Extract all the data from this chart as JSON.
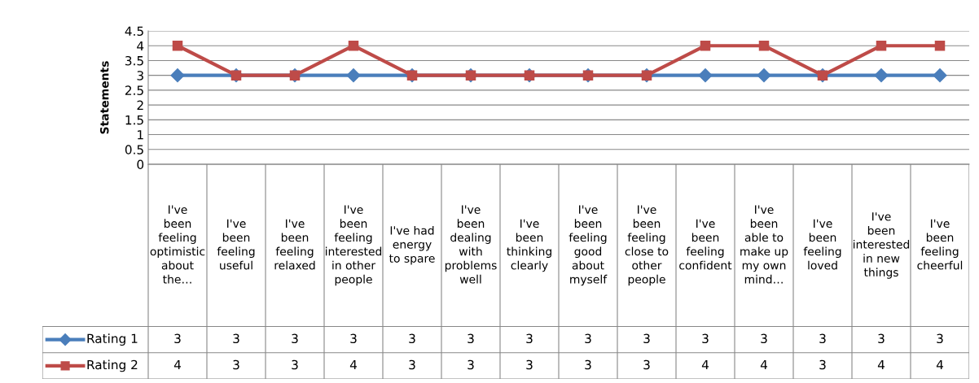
{
  "chart_data": {
    "type": "line",
    "ylabel": "Statements",
    "categories": [
      "I've been feeling optimistic about the…",
      "I've been feeling useful",
      "I've been feeling relaxed",
      "I've been feeling interested in other people",
      "I've had energy to spare",
      "I've been dealing with problems well",
      "I've been thinking clearly",
      "I've been feeling good about myself",
      "I've been feeling close to other people",
      "I've been feeling confident",
      "I've been able to make up my own mind…",
      "I've been feeling loved",
      "I've been interested in new things",
      "I've been feeling cheerful"
    ],
    "series": [
      {
        "name": "Rating 1",
        "color": "#4a7ebb",
        "marker": "diamond",
        "values": [
          3,
          3,
          3,
          3,
          3,
          3,
          3,
          3,
          3,
          3,
          3,
          3,
          3,
          3
        ]
      },
      {
        "name": "Rating 2",
        "color": "#be4b48",
        "marker": "square",
        "values": [
          4,
          3,
          3,
          4,
          3,
          3,
          3,
          3,
          3,
          4,
          4,
          3,
          4,
          4
        ]
      }
    ],
    "ylim": [
      0,
      4.5
    ],
    "yticks": [
      0,
      0.5,
      1,
      1.5,
      2,
      2.5,
      3,
      3.5,
      4,
      4.5
    ],
    "grid": "y",
    "data_labels": true,
    "legend": "bottom left"
  }
}
